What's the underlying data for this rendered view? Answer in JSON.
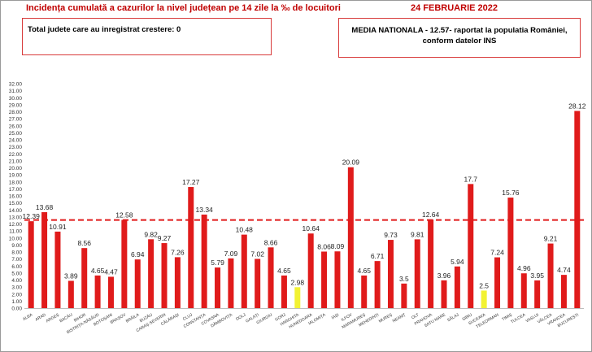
{
  "header": {
    "title": "Incidența cumulată a cazurilor la nivel județean pe 14 zile la ‰ de locuitori",
    "date": "24 FEBRUARIE 2022"
  },
  "info_left": "Total judete care au inregistrat crestere: 0",
  "info_right_line1": "MEDIA NATIONALA - 12.57-  raportat la populatia României,",
  "info_right_line2": "conform datelor INS",
  "chart_data": {
    "type": "bar",
    "title": "Incidența cumulată a cazurilor la nivel județean pe 14 zile la ‰ de locuitori",
    "categories": [
      "ALBA",
      "ARAD",
      "ARGEȘ",
      "BACĂU",
      "BIHOR",
      "BISTRIȚA-NĂSĂUD",
      "BOTOȘANI",
      "BRAȘOV",
      "BRĂILA",
      "BUZĂU",
      "CARAȘ-SEVERIN",
      "CĂLĂRAȘI",
      "CLUJ",
      "CONSTANȚA",
      "COVASNA",
      "DÂMBOVIȚA",
      "DOLJ",
      "GALAȚI",
      "GIURGIU",
      "GORJ",
      "HARGHITA",
      "HUNEDOARA",
      "IALOMIȚA",
      "IAȘI",
      "ILFOV",
      "MARAMUREȘ",
      "MEHEDINȚI",
      "MUREȘ",
      "NEAMȚ",
      "OLT",
      "PRAHOVA",
      "SATU MARE",
      "SĂLAJ",
      "SIBIU",
      "SUCEAVA",
      "TELEORMAN",
      "TIMIȘ",
      "TULCEA",
      "VASLUI",
      "VÂLCEA",
      "VRANCEA",
      "BUCUREȘTI"
    ],
    "values": [
      12.39,
      13.68,
      10.91,
      3.89,
      8.56,
      4.65,
      4.47,
      12.58,
      6.94,
      9.82,
      9.27,
      7.26,
      17.27,
      13.34,
      5.79,
      7.09,
      10.48,
      7.02,
      8.66,
      4.65,
      2.98,
      10.64,
      8.06,
      8.09,
      20.09,
      4.65,
      6.71,
      9.73,
      3.5,
      9.81,
      12.64,
      3.96,
      5.94,
      17.7,
      2.5,
      7.24,
      15.76,
      4.96,
      3.95,
      9.21,
      4.74,
      28.12
    ],
    "value_labels": [
      "12.39",
      "13.68",
      "10.91",
      "3.89",
      "8.56",
      "4.65",
      "4.47",
      "12.58",
      "6.94",
      "9.82",
      "9.27",
      "7.26",
      "17.27",
      "13.34",
      "5.79",
      "7.09",
      "10.48",
      "7.02",
      "8.66",
      "4.65",
      "2.98",
      "10.64",
      "8.06",
      "8.09",
      "20.09",
      "4.65",
      "6.71",
      "9.73",
      "3.5",
      "9.81",
      "12.64",
      "3.96",
      "5.94",
      "17.7",
      "2.5",
      "7.24",
      "15.76",
      "4.96",
      "3.95",
      "9.21",
      "4.74",
      "28.12"
    ],
    "bar_colors": [
      "#e01b1b",
      "#e01b1b",
      "#e01b1b",
      "#e01b1b",
      "#e01b1b",
      "#e01b1b",
      "#e01b1b",
      "#e01b1b",
      "#e01b1b",
      "#e01b1b",
      "#e01b1b",
      "#e01b1b",
      "#e01b1b",
      "#e01b1b",
      "#e01b1b",
      "#e01b1b",
      "#e01b1b",
      "#e01b1b",
      "#e01b1b",
      "#e01b1b",
      "#f2f233",
      "#e01b1b",
      "#e01b1b",
      "#e01b1b",
      "#e01b1b",
      "#e01b1b",
      "#e01b1b",
      "#e01b1b",
      "#e01b1b",
      "#e01b1b",
      "#e01b1b",
      "#e01b1b",
      "#e01b1b",
      "#e01b1b",
      "#f2f233",
      "#e01b1b",
      "#e01b1b",
      "#e01b1b",
      "#e01b1b",
      "#e01b1b",
      "#e01b1b",
      "#e01b1b"
    ],
    "yticks": [
      "0.00",
      "1.00",
      "2.00",
      "3.00",
      "4.00",
      "5.00",
      "6.00",
      "7.00",
      "8.00",
      "9.00",
      "10.00",
      "11.00",
      "12.00",
      "13.00",
      "14.00",
      "15.00",
      "16.00",
      "17.00",
      "18.00",
      "19.00",
      "20.00",
      "21.00",
      "22.00",
      "23.00",
      "24.00",
      "25.00",
      "26.00",
      "27.00",
      "28.00",
      "29.00",
      "30.00",
      "31.00",
      "32.00"
    ],
    "ylim": [
      0,
      32
    ],
    "reference_line": {
      "value": 12.57,
      "style": "dashed",
      "color": "#e01b1b"
    },
    "grid": false,
    "legend": "none"
  }
}
